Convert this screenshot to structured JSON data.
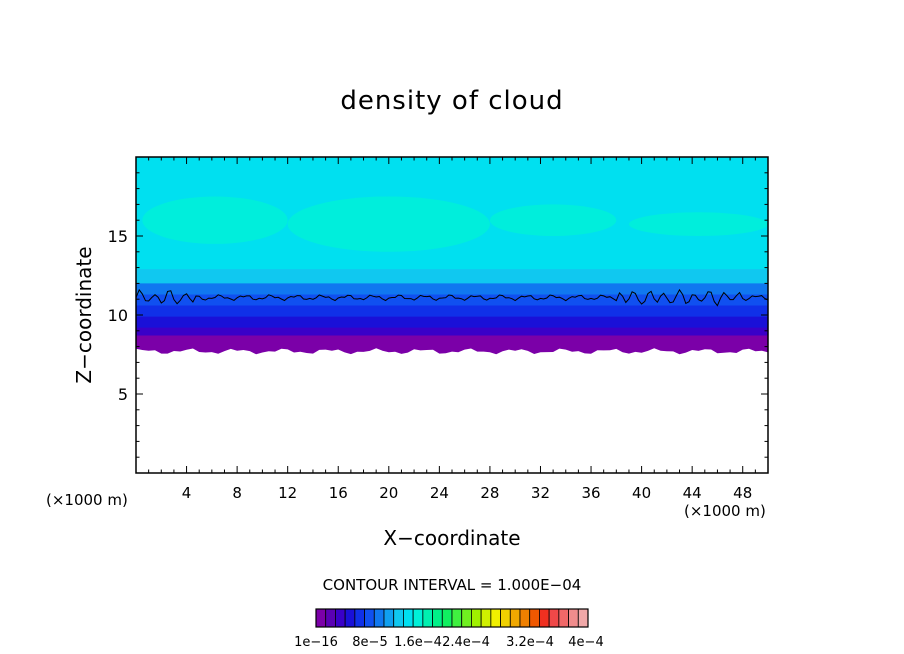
{
  "chart_data": {
    "type": "heatmap",
    "title": "density of cloud",
    "xlabel": "X−coordinate",
    "ylabel": "Z−coordinate",
    "x_unit_left": "(×1000 m)",
    "x_unit_right": "(×1000 m)",
    "xlim": [
      0,
      50
    ],
    "ylim": [
      0,
      20
    ],
    "x_ticks": [
      "4",
      "8",
      "12",
      "16",
      "20",
      "24",
      "28",
      "32",
      "36",
      "40",
      "44",
      "48"
    ],
    "y_ticks": [
      "5",
      "10",
      "15"
    ],
    "contour_interval_label": "CONTOUR INTERVAL = 1.000E−04",
    "colorbar": {
      "colors": [
        "#7b00a8",
        "#5a00b4",
        "#3a00c8",
        "#1a10d8",
        "#1030e8",
        "#1050f0",
        "#1078f0",
        "#10a0f0",
        "#10c8f0",
        "#00e0f0",
        "#00f0d8",
        "#00f0b0",
        "#00f088",
        "#10f060",
        "#40f040",
        "#70f020",
        "#a0f000",
        "#d0f000",
        "#f0f000",
        "#f0d000",
        "#f0a800",
        "#f08000",
        "#f05800",
        "#f03020",
        "#f04848",
        "#f06868",
        "#f08c8c",
        "#f0a8a8"
      ],
      "tick_labels": [
        "1e−16",
        "8e−5",
        "1.6e−4",
        "2.4e−4",
        "3.2e−4",
        "4e−4"
      ]
    },
    "bands": [
      {
        "z_bottom": 7.7,
        "z_top": 8.4,
        "color": "#7b00a8"
      },
      {
        "z_bottom": 8.4,
        "z_top": 8.9,
        "color": "#3a00c8"
      },
      {
        "z_bottom": 8.9,
        "z_top": 9.6,
        "color": "#1a10d8"
      },
      {
        "z_bottom": 9.6,
        "z_top": 10.3,
        "color": "#1030e8"
      },
      {
        "z_bottom": 10.3,
        "z_top": 11.0,
        "color": "#1050f0"
      },
      {
        "z_bottom": 11.0,
        "z_top": 11.7,
        "color": "#1078f0"
      },
      {
        "z_bottom": 11.7,
        "z_top": 12.6,
        "color": "#10c8f0"
      },
      {
        "z_bottom": 12.6,
        "z_top": 20,
        "color": "#00e0f0"
      }
    ],
    "contour_line_z": 11.1,
    "lighter_patches": [
      {
        "x": [
          0.5,
          12
        ],
        "z": [
          14.5,
          17.5
        ],
        "color": "#00f0d8"
      },
      {
        "x": [
          12,
          28
        ],
        "z": [
          14,
          17.5
        ],
        "color": "#00f0d8"
      },
      {
        "x": [
          28,
          38
        ],
        "z": [
          15,
          17
        ],
        "color": "#00f0d8"
      },
      {
        "x": [
          39,
          50
        ],
        "z": [
          15,
          16.5
        ],
        "color": "#00f0d8"
      }
    ]
  }
}
